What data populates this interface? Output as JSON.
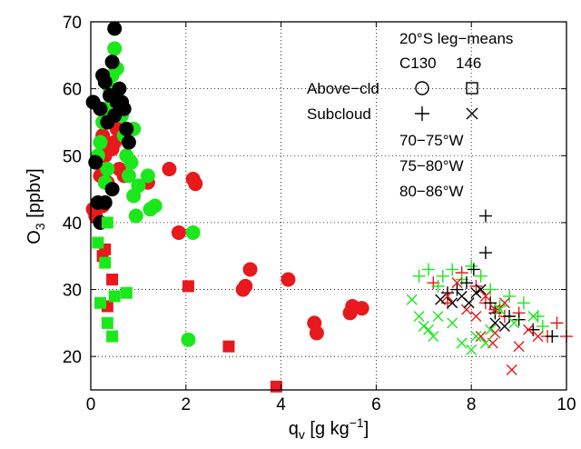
{
  "chart_data": {
    "type": "scatter",
    "xlabel": "q",
    "xlabel_sub": "v",
    "xlabel_unit_pre": " [g kg",
    "xlabel_unit_sup": "−1",
    "xlabel_unit_post": "]",
    "ylabel": "O",
    "ylabel_sub": "3",
    "ylabel_unit": " [ppbv]",
    "xlim": [
      0,
      10
    ],
    "ylim": [
      15,
      70
    ],
    "xticks": [
      0,
      2,
      4,
      6,
      8,
      10
    ],
    "yticks": [
      20,
      30,
      40,
      50,
      60,
      70
    ],
    "grid": "dotted",
    "legend": {
      "position": "top-right",
      "title": "20°S leg−means",
      "col_header_left": "C130",
      "col_header_right": "146",
      "rows": [
        {
          "label": "Above−cld",
          "c130_marker": "circle-open",
          "146_marker": "square-open"
        },
        {
          "label": "Subcloud",
          "c130_marker": "plus",
          "146_marker": "x"
        }
      ],
      "region_labels": [
        {
          "label": "70−75°W",
          "color": "#e8181c"
        },
        {
          "label": "75−80°W",
          "color": "#1be81b"
        },
        {
          "label": "80−86°W",
          "color": "#000000"
        }
      ]
    },
    "series": [
      {
        "region": "70−75°W",
        "platform": "C130",
        "level": "Above−cld",
        "marker": "circle",
        "color": "#e8181c",
        "points": [
          [
            0.05,
            42
          ],
          [
            0.1,
            41
          ],
          [
            0.25,
            42.5
          ],
          [
            0.35,
            46
          ],
          [
            0.3,
            50
          ],
          [
            0.45,
            51
          ],
          [
            0.5,
            52
          ],
          [
            0.55,
            54
          ],
          [
            0.6,
            48
          ],
          [
            0.7,
            47
          ],
          [
            0.25,
            53
          ],
          [
            0.2,
            47
          ],
          [
            1.2,
            46
          ],
          [
            1.65,
            48
          ],
          [
            1.85,
            38.5
          ],
          [
            2.15,
            46.5
          ],
          [
            2.2,
            45.8
          ],
          [
            3.2,
            30
          ],
          [
            3.25,
            30.5
          ],
          [
            3.35,
            33
          ],
          [
            4.15,
            31.5
          ],
          [
            4.7,
            25
          ],
          [
            4.75,
            23.5
          ],
          [
            5.45,
            26.5
          ],
          [
            5.5,
            27.5
          ],
          [
            5.7,
            27.2
          ]
        ]
      },
      {
        "region": "75−80°W",
        "platform": "C130",
        "level": "Above−cld",
        "marker": "circle",
        "color": "#1be81b",
        "points": [
          [
            0.15,
            50
          ],
          [
            0.2,
            52
          ],
          [
            0.25,
            55
          ],
          [
            0.3,
            57
          ],
          [
            0.35,
            48
          ],
          [
            0.4,
            60
          ],
          [
            0.45,
            62
          ],
          [
            0.5,
            66
          ],
          [
            0.55,
            63
          ],
          [
            0.6,
            58
          ],
          [
            0.65,
            56
          ],
          [
            0.7,
            53
          ],
          [
            0.75,
            50
          ],
          [
            0.8,
            47
          ],
          [
            0.85,
            49
          ],
          [
            0.9,
            54
          ],
          [
            0.3,
            46
          ],
          [
            0.9,
            44
          ],
          [
            1.0,
            45.5
          ],
          [
            0.95,
            41
          ],
          [
            1.2,
            47
          ],
          [
            1.25,
            42
          ],
          [
            1.35,
            42.5
          ],
          [
            2.05,
            22.5
          ],
          [
            2.15,
            38.5
          ]
        ]
      },
      {
        "region": "80−86°W",
        "platform": "C130",
        "level": "Above−cld",
        "marker": "circle",
        "color": "#000000",
        "points": [
          [
            0.05,
            58
          ],
          [
            0.1,
            49
          ],
          [
            0.15,
            43
          ],
          [
            0.2,
            57
          ],
          [
            0.2,
            40
          ],
          [
            0.25,
            62
          ],
          [
            0.3,
            61
          ],
          [
            0.3,
            43
          ],
          [
            0.35,
            55
          ],
          [
            0.4,
            59
          ],
          [
            0.45,
            64
          ],
          [
            0.45,
            45
          ],
          [
            0.5,
            69
          ],
          [
            0.5,
            56
          ],
          [
            0.55,
            58
          ],
          [
            0.6,
            60
          ],
          [
            0.65,
            58
          ],
          [
            0.7,
            57
          ],
          [
            0.75,
            54
          ],
          [
            0.8,
            52
          ]
        ]
      },
      {
        "region": "70−75°W",
        "platform": "146",
        "level": "Above−cld",
        "marker": "square",
        "color": "#e8181c",
        "points": [
          [
            0.25,
            35
          ],
          [
            0.3,
            36
          ],
          [
            0.35,
            27.5
          ],
          [
            0.45,
            31.5
          ],
          [
            2.05,
            30.5
          ],
          [
            2.9,
            21.5
          ],
          [
            3.9,
            15.5
          ]
        ]
      },
      {
        "region": "75−80°W",
        "platform": "146",
        "level": "Above−cld",
        "marker": "square",
        "color": "#1be81b",
        "points": [
          [
            0.15,
            37
          ],
          [
            0.2,
            28
          ],
          [
            0.3,
            34
          ],
          [
            0.35,
            25
          ],
          [
            0.35,
            40
          ],
          [
            0.45,
            23
          ],
          [
            0.5,
            29
          ],
          [
            0.75,
            29.5
          ]
        ]
      },
      {
        "region": "70−75°W",
        "platform": "C130",
        "level": "Subcloud",
        "marker": "plus",
        "color": "#e8181c",
        "points": [
          [
            7.2,
            31
          ],
          [
            7.5,
            28
          ],
          [
            7.8,
            32.5
          ],
          [
            8.1,
            30.5
          ],
          [
            8.3,
            28
          ],
          [
            8.5,
            27
          ],
          [
            8.7,
            26
          ],
          [
            9.0,
            26.5
          ],
          [
            9.3,
            24
          ],
          [
            9.6,
            23
          ],
          [
            9.8,
            25
          ],
          [
            10.0,
            23
          ]
        ]
      },
      {
        "region": "75−80°W",
        "platform": "C130",
        "level": "Subcloud",
        "marker": "plus",
        "color": "#1be81b",
        "points": [
          [
            6.9,
            32
          ],
          [
            7.1,
            33
          ],
          [
            7.3,
            30.5
          ],
          [
            7.4,
            32
          ],
          [
            7.6,
            33
          ],
          [
            7.8,
            31.5
          ],
          [
            8.0,
            33.5
          ],
          [
            8.2,
            32
          ],
          [
            8.4,
            30
          ],
          [
            8.6,
            27.5
          ],
          [
            8.8,
            29
          ],
          [
            9.1,
            28
          ],
          [
            9.4,
            26
          ],
          [
            9.5,
            24.5
          ]
        ]
      },
      {
        "region": "80−86°W",
        "platform": "C130",
        "level": "Subcloud",
        "marker": "plus",
        "color": "#000000",
        "points": [
          [
            7.5,
            29.5
          ],
          [
            7.7,
            30
          ],
          [
            7.9,
            31
          ],
          [
            8.05,
            33
          ],
          [
            8.3,
            41
          ],
          [
            8.3,
            35.5
          ],
          [
            8.4,
            28
          ],
          [
            8.5,
            26.5
          ],
          [
            8.8,
            26
          ],
          [
            9.0,
            25.5
          ],
          [
            9.3,
            24
          ],
          [
            9.7,
            23
          ]
        ]
      },
      {
        "region": "70−75°W",
        "platform": "146",
        "level": "Subcloud",
        "marker": "x",
        "color": "#e8181c",
        "points": [
          [
            7.5,
            29
          ],
          [
            7.9,
            27
          ],
          [
            8.1,
            26
          ],
          [
            8.3,
            29
          ],
          [
            8.5,
            27
          ],
          [
            8.7,
            28
          ],
          [
            8.85,
            18
          ],
          [
            9.0,
            21.5
          ],
          [
            9.2,
            24
          ],
          [
            9.4,
            23
          ],
          [
            8.5,
            23.5
          ],
          [
            7.7,
            31
          ],
          [
            8.2,
            23
          ],
          [
            8.45,
            22
          ]
        ]
      },
      {
        "region": "75−80°W",
        "platform": "146",
        "level": "Subcloud",
        "marker": "x",
        "color": "#1be81b",
        "points": [
          [
            6.75,
            28.5
          ],
          [
            6.9,
            26
          ],
          [
            7.0,
            24.5
          ],
          [
            7.1,
            24
          ],
          [
            7.2,
            23
          ],
          [
            7.3,
            26
          ],
          [
            7.6,
            25
          ],
          [
            7.8,
            22
          ],
          [
            8.0,
            21
          ],
          [
            8.1,
            23
          ],
          [
            8.3,
            22
          ],
          [
            8.4,
            24
          ],
          [
            8.6,
            27
          ],
          [
            8.9,
            25
          ],
          [
            9.3,
            26
          ]
        ]
      },
      {
        "region": "80−86°W",
        "platform": "146",
        "level": "Subcloud",
        "marker": "x",
        "color": "#000000",
        "points": [
          [
            7.35,
            28.5
          ],
          [
            7.6,
            28
          ],
          [
            7.8,
            29
          ],
          [
            7.95,
            28
          ],
          [
            8.1,
            29.5
          ],
          [
            8.2,
            30
          ],
          [
            8.5,
            25
          ],
          [
            8.7,
            24.5
          ]
        ]
      }
    ]
  }
}
